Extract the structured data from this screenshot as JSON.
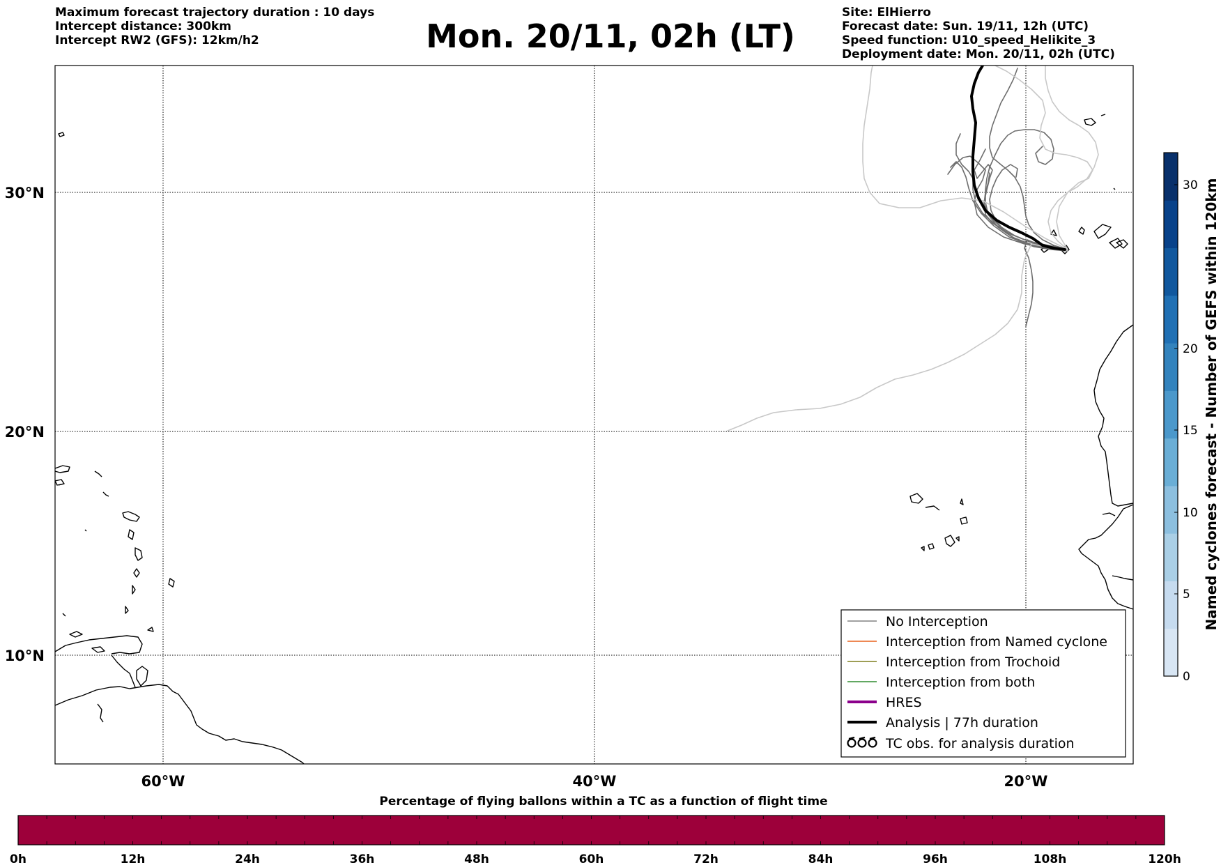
{
  "title": "Mon. 20/11, 02h (LT)",
  "header_left": {
    "line1": "Maximum forecast trajectory duration : 10 days",
    "line2": "Intercept distance: 300km",
    "line3": "Intercept RW2 (GFS):  12km/h2"
  },
  "header_right": {
    "site": "Site: ElHierro",
    "forecast_date": "Forecast date: Sun. 19/11, 12h (UTC)",
    "speed_function": "Speed function: U10_speed_Helikite_3",
    "deployment_date": "Deployment date: Mon. 20/11, 02h (UTC)"
  },
  "map": {
    "lat_labels": [
      "30°N",
      "20°N",
      "10°N"
    ],
    "lon_labels": [
      "60°W",
      "40°W",
      "20°W"
    ],
    "gridlines": true
  },
  "legend": {
    "placement": "bottom-right",
    "entries": [
      {
        "label": "No Interception",
        "color": "#808080",
        "style": "thin-line"
      },
      {
        "label": "Interception from Named cyclone",
        "color": "#e8601c",
        "style": "thin-line"
      },
      {
        "label": "Interception from Trochoid",
        "color": "#7f7f1f",
        "style": "thin-line"
      },
      {
        "label": "Interception from both",
        "color": "#2e8b2e",
        "style": "thin-line"
      },
      {
        "label": "HRES",
        "color": "#8b008b",
        "style": "thick-line"
      },
      {
        "label": "Analysis | 77h duration",
        "color": "#000000",
        "style": "thick-line"
      },
      {
        "label": "TC obs. for analysis duration",
        "color": "#000000",
        "style": "symbols"
      }
    ]
  },
  "right_colorbar": {
    "label": "Named cyclones forecast - Number of GEFS within 120km",
    "ticks": [
      "0",
      "5",
      "10",
      "15",
      "20",
      "30"
    ],
    "colors": [
      "#d8e6f4",
      "#c6dbef",
      "#aacfe6",
      "#8cbfdf",
      "#6aaed6",
      "#4b98cb",
      "#3383bd",
      "#2070b4",
      "#11589e",
      "#08428a",
      "#08306b"
    ]
  },
  "bottom_colorbar": {
    "caption": "Percentage of flying ballons within a TC as a function of flight time",
    "color": "#9d003a",
    "ticks": [
      "0h",
      "12h",
      "24h",
      "36h",
      "48h",
      "60h",
      "72h",
      "84h",
      "96h",
      "108h",
      "120h"
    ]
  }
}
